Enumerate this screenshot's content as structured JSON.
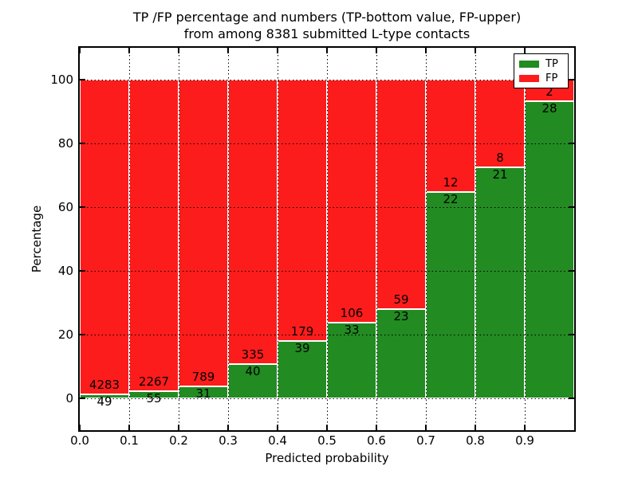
{
  "title": {
    "line1": "TP /FP percentage and numbers (TP-bottom value, FP-upper)",
    "line2": "from among 8381 submitted L-type contacts"
  },
  "legend": {
    "entries": [
      {
        "label": "TP",
        "color": "#228b22"
      },
      {
        "label": "FP",
        "color": "#fd1c1c"
      }
    ]
  },
  "chart_data": {
    "type": "bar",
    "stacked": true,
    "normalized_to_percent": 100,
    "title": "TP /FP percentage and numbers (TP-bottom value, FP-upper) from among 8381 submitted L-type contacts",
    "total_submitted_contacts": 8381,
    "xlabel": "Predicted probability",
    "ylabel": "Percentage",
    "categories": [
      "0.0",
      "0.1",
      "0.2",
      "0.3",
      "0.4",
      "0.5",
      "0.6",
      "0.7",
      "0.8",
      "0.9"
    ],
    "series": [
      {
        "name": "TP",
        "color": "#228b22",
        "counts": [
          49,
          55,
          31,
          40,
          39,
          33,
          23,
          22,
          21,
          28
        ],
        "percent": [
          1.13,
          2.37,
          3.78,
          10.67,
          17.89,
          23.74,
          28.05,
          64.71,
          72.41,
          93.33
        ]
      },
      {
        "name": "FP",
        "color": "#fd1c1c",
        "counts": [
          4283,
          2267,
          789,
          335,
          179,
          106,
          59,
          12,
          8,
          2
        ],
        "percent": [
          98.87,
          97.63,
          96.22,
          89.33,
          82.11,
          76.26,
          71.95,
          35.29,
          27.59,
          6.67
        ]
      }
    ],
    "label_note": "TP count printed below segment boundary, FP count printed above it",
    "xticks": [
      "0.0",
      "0.1",
      "0.2",
      "0.3",
      "0.4",
      "0.5",
      "0.6",
      "0.7",
      "0.8",
      "0.9"
    ],
    "yticks": [
      0,
      20,
      40,
      60,
      80,
      100
    ],
    "xlim": [
      0.0,
      1.0
    ],
    "ylim": [
      -10,
      110
    ],
    "grid": "dotted",
    "legend_position": "upper right"
  }
}
